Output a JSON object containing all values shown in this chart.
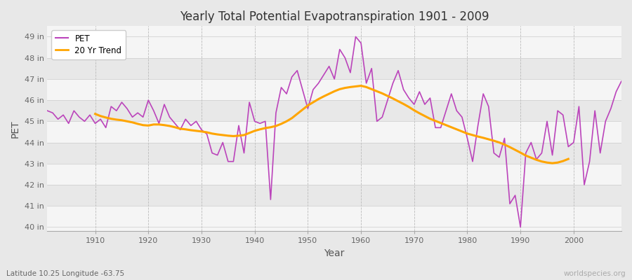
{
  "title": "Yearly Total Potential Evapotranspiration 1901 - 2009",
  "xlabel": "Year",
  "ylabel": "PET",
  "subtitle_left": "Latitude 10.25 Longitude -63.75",
  "subtitle_right": "worldspecies.org",
  "pet_color": "#bb44bb",
  "trend_color": "#ffa500",
  "fig_bg_color": "#e8e8e8",
  "plot_bg_color": "#f5f5f5",
  "band_color_light": "#f5f5f5",
  "band_color_dark": "#e8e8e8",
  "ylim": [
    39.8,
    49.5
  ],
  "yticks": [
    40,
    41,
    42,
    43,
    44,
    45,
    46,
    47,
    48,
    49
  ],
  "ytick_labels": [
    "40 in",
    "41 in",
    "42 in",
    "43 in",
    "44 in",
    "45 in",
    "46 in",
    "47 in",
    "48 in",
    "49 in"
  ],
  "xlim": [
    1901,
    2009
  ],
  "xticks": [
    1910,
    1920,
    1930,
    1940,
    1950,
    1960,
    1970,
    1980,
    1990,
    2000
  ],
  "years": [
    1901,
    1902,
    1903,
    1904,
    1905,
    1906,
    1907,
    1908,
    1909,
    1910,
    1911,
    1912,
    1913,
    1914,
    1915,
    1916,
    1917,
    1918,
    1919,
    1920,
    1921,
    1922,
    1923,
    1924,
    1925,
    1926,
    1927,
    1928,
    1929,
    1930,
    1931,
    1932,
    1933,
    1934,
    1935,
    1936,
    1937,
    1938,
    1939,
    1940,
    1941,
    1942,
    1943,
    1944,
    1945,
    1946,
    1947,
    1948,
    1949,
    1950,
    1951,
    1952,
    1953,
    1954,
    1955,
    1956,
    1957,
    1958,
    1959,
    1960,
    1961,
    1962,
    1963,
    1964,
    1965,
    1966,
    1967,
    1968,
    1969,
    1970,
    1971,
    1972,
    1973,
    1974,
    1975,
    1976,
    1977,
    1978,
    1979,
    1980,
    1981,
    1982,
    1983,
    1984,
    1985,
    1986,
    1987,
    1988,
    1989,
    1990,
    1991,
    1992,
    1993,
    1994,
    1995,
    1996,
    1997,
    1998,
    1999,
    2000,
    2001,
    2002,
    2003,
    2004,
    2005,
    2006,
    2007,
    2008,
    2009
  ],
  "pet_values": [
    45.5,
    45.4,
    45.1,
    45.3,
    44.9,
    45.5,
    45.2,
    45.0,
    45.3,
    44.9,
    45.1,
    44.7,
    45.7,
    45.5,
    45.9,
    45.6,
    45.2,
    45.4,
    45.2,
    46.0,
    45.5,
    44.9,
    45.8,
    45.2,
    44.9,
    44.6,
    45.1,
    44.8,
    45.0,
    44.6,
    44.4,
    43.5,
    43.4,
    44.0,
    43.1,
    43.1,
    44.8,
    43.5,
    45.9,
    45.0,
    44.9,
    45.0,
    41.3,
    45.4,
    46.6,
    46.3,
    47.1,
    47.4,
    46.5,
    45.6,
    46.5,
    46.8,
    47.2,
    47.6,
    47.0,
    48.4,
    48.0,
    47.3,
    49.0,
    48.7,
    46.8,
    47.5,
    45.0,
    45.2,
    46.0,
    46.8,
    47.4,
    46.5,
    46.1,
    45.8,
    46.4,
    45.8,
    46.1,
    44.7,
    44.7,
    45.5,
    46.3,
    45.5,
    45.2,
    44.2,
    43.1,
    44.8,
    46.3,
    45.7,
    43.5,
    43.3,
    44.2,
    41.1,
    41.5,
    40.0,
    43.5,
    44.0,
    43.2,
    43.5,
    45.0,
    43.4,
    45.5,
    45.3,
    43.8,
    44.0,
    45.7,
    42.0,
    43.1,
    45.5,
    43.5,
    45.0,
    45.6,
    46.4,
    46.9
  ],
  "trend_values": [
    null,
    null,
    null,
    null,
    null,
    null,
    null,
    null,
    null,
    45.35,
    45.25,
    45.18,
    45.12,
    45.08,
    45.05,
    45.0,
    44.95,
    44.88,
    44.82,
    44.8,
    44.85,
    44.85,
    44.82,
    44.78,
    44.72,
    44.65,
    44.62,
    44.58,
    44.55,
    44.52,
    44.48,
    44.42,
    44.38,
    44.35,
    44.32,
    44.3,
    44.32,
    44.35,
    44.45,
    44.55,
    44.62,
    44.68,
    44.72,
    44.78,
    44.88,
    45.0,
    45.15,
    45.35,
    45.55,
    45.75,
    45.9,
    46.05,
    46.18,
    46.3,
    46.42,
    46.52,
    46.58,
    46.62,
    46.65,
    46.68,
    46.62,
    46.52,
    46.42,
    46.32,
    46.2,
    46.08,
    45.95,
    45.82,
    45.68,
    45.52,
    45.38,
    45.25,
    45.12,
    45.02,
    44.92,
    44.82,
    44.72,
    44.62,
    44.52,
    44.42,
    44.35,
    44.28,
    44.22,
    44.15,
    44.08,
    44.0,
    43.9,
    43.78,
    43.65,
    43.52,
    43.38,
    43.28,
    43.18,
    43.1,
    43.05,
    43.02,
    43.05,
    43.12,
    43.22,
    null,
    null,
    null,
    null,
    null,
    null,
    null,
    null,
    null,
    null
  ]
}
